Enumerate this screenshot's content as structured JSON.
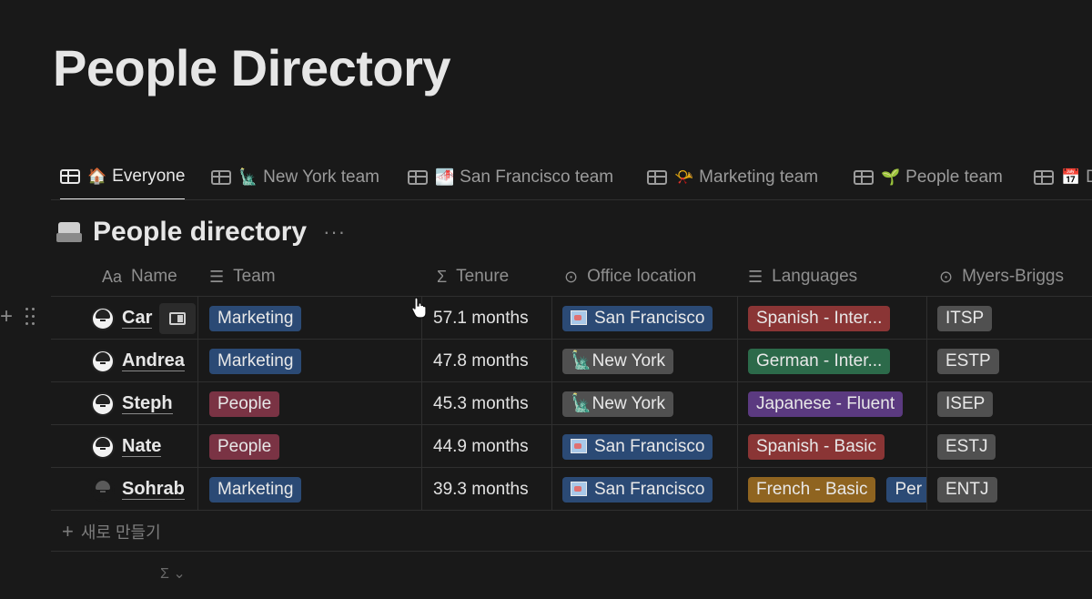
{
  "page_title": "People Directory",
  "tabs": [
    {
      "emoji": "🏠",
      "label": "Everyone",
      "active": true
    },
    {
      "emoji": "🗽",
      "label": "New York team",
      "active": false
    },
    {
      "emoji": "🌁",
      "label": "San Francisco team",
      "active": false
    },
    {
      "emoji": "📯",
      "label": "Marketing team",
      "active": false
    },
    {
      "emoji": "🌱",
      "label": "People team",
      "active": false
    },
    {
      "emoji": "📅",
      "label": "D",
      "active": false
    }
  ],
  "database": {
    "title": "People directory",
    "more": "···"
  },
  "columns": [
    {
      "icon": "Aa",
      "label": "Name"
    },
    {
      "icon": "☰",
      "label": "Team"
    },
    {
      "icon": "Σ",
      "label": "Tenure"
    },
    {
      "icon": "⊙",
      "label": "Office location"
    },
    {
      "icon": "☰",
      "label": "Languages"
    },
    {
      "icon": "⊙",
      "label": "Myers-Briggs"
    }
  ],
  "rows": [
    {
      "name": "Car",
      "team": "Marketing",
      "tenure": "57.1 months",
      "office": "San Francisco",
      "languages": [
        "Spanish - Inter..."
      ],
      "mbti": "ITSP"
    },
    {
      "name": "Andrea",
      "team": "Marketing",
      "tenure": "47.8 months",
      "office": "New York",
      "languages": [
        "German - Inter..."
      ],
      "mbti": "ESTP"
    },
    {
      "name": "Steph",
      "team": "People",
      "tenure": "45.3 months",
      "office": "New York",
      "languages": [
        "Japanese - Fluent"
      ],
      "mbti": "ISEP"
    },
    {
      "name": "Nate",
      "team": "People",
      "tenure": "44.9 months",
      "office": "San Francisco",
      "languages": [
        "Spanish - Basic"
      ],
      "mbti": "ESTJ"
    },
    {
      "name": "Sohrab",
      "team": "Marketing",
      "tenure": "39.3 months",
      "office": "San Francisco",
      "languages": [
        "French - Basic",
        "Per"
      ],
      "mbti": "ENTJ"
    }
  ],
  "new_row_label": "새로 만들기",
  "calc_label": "Σ ⌄",
  "colors": {
    "marketing": "#2b4a75",
    "people": "#7a3344",
    "office_sf": "#2b4a75",
    "office_ny": "#505050",
    "lang_spanish": "#8a3535",
    "lang_german": "#2c6a4a",
    "lang_japanese": "#5b3a80",
    "lang_french": "#8f6420",
    "lang_persian": "#2b4a75",
    "mbti": "#505050"
  }
}
